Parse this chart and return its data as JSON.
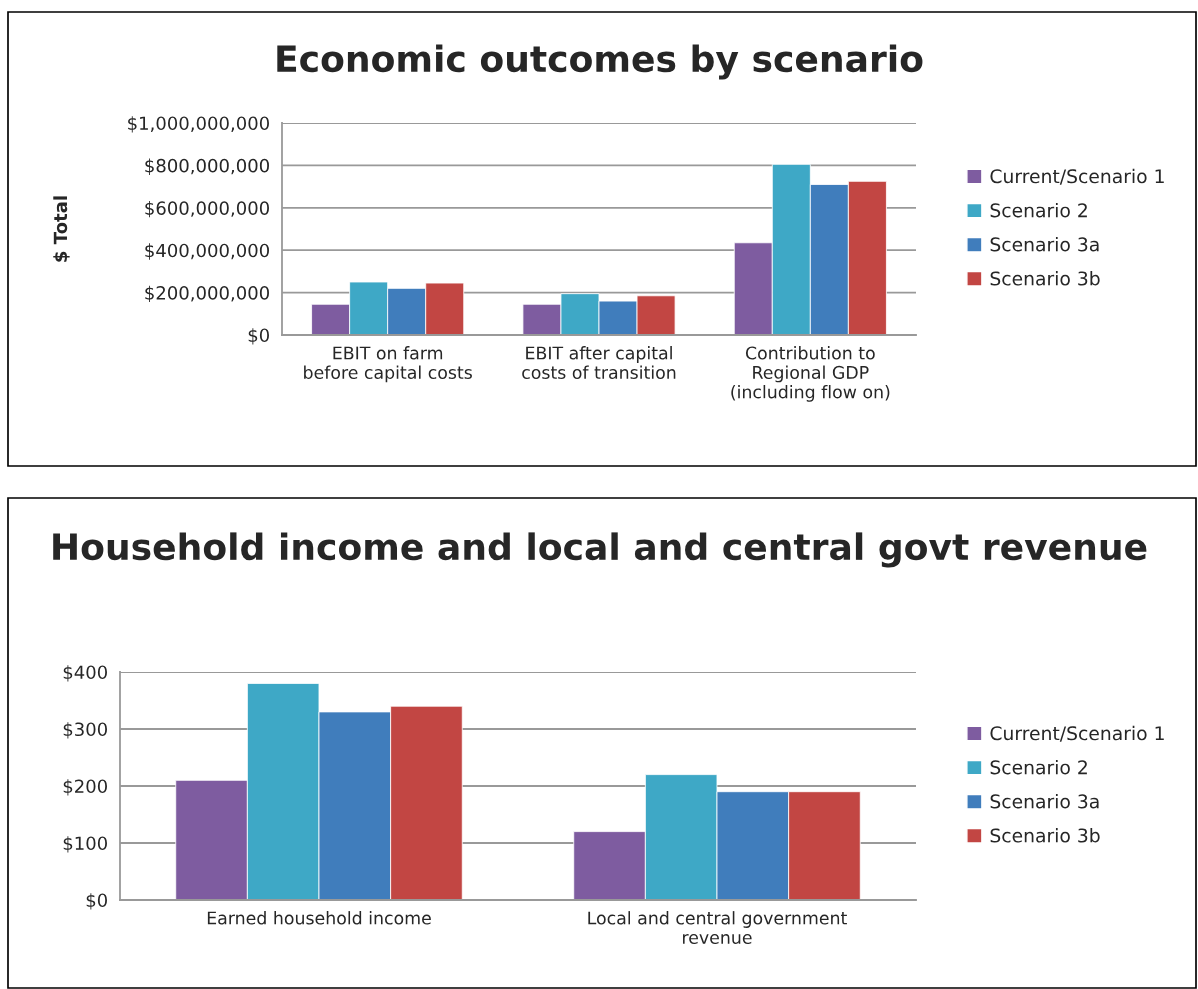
{
  "chart_data": [
    {
      "type": "bar",
      "title": "Economic outcomes by scenario",
      "ylabel": "$ Total",
      "categories": [
        "EBIT on farm\nbefore capital costs",
        "EBIT after capital\ncosts of transition",
        "Contribution to\nRegional GDP\n(including flow on)"
      ],
      "series": [
        {
          "name": "Current/Scenario 1",
          "color": "#7e5ca0",
          "values": [
            145000000,
            145000000,
            435000000
          ]
        },
        {
          "name": "Scenario 2",
          "color": "#3ea8c6",
          "values": [
            250000000,
            195000000,
            805000000
          ]
        },
        {
          "name": "Scenario 3a",
          "color": "#407dbc",
          "values": [
            220000000,
            160000000,
            710000000
          ]
        },
        {
          "name": "Scenario 3b",
          "color": "#c24643",
          "values": [
            245000000,
            185000000,
            725000000
          ]
        }
      ],
      "ylim": [
        0,
        1000000000
      ],
      "yticks": [
        {
          "value": 0,
          "label": "$0"
        },
        {
          "value": 200000000,
          "label": "$200,000,000"
        },
        {
          "value": 400000000,
          "label": "$400,000,000"
        },
        {
          "value": 600000000,
          "label": "$600,000,000"
        },
        {
          "value": 800000000,
          "label": "$800,000,000"
        },
        {
          "value": 1000000000,
          "label": "$1,000,000,000"
        }
      ],
      "grid": "y",
      "legend": "right"
    },
    {
      "type": "bar",
      "title": "Household income and local and central govt revenue",
      "categories": [
        "Earned household income",
        "Local and central government\nrevenue"
      ],
      "series": [
        {
          "name": "Current/Scenario 1",
          "color": "#7e5ca0",
          "values": [
            210,
            120
          ]
        },
        {
          "name": "Scenario 2",
          "color": "#3ea8c6",
          "values": [
            380,
            220
          ]
        },
        {
          "name": "Scenario 3a",
          "color": "#407dbc",
          "values": [
            330,
            190
          ]
        },
        {
          "name": "Scenario 3b",
          "color": "#c24643",
          "values": [
            340,
            190
          ]
        }
      ],
      "ylim": [
        0,
        400
      ],
      "yticks": [
        {
          "value": 0,
          "label": "$0"
        },
        {
          "value": 100,
          "label": "$100"
        },
        {
          "value": 200,
          "label": "$200"
        },
        {
          "value": 300,
          "label": "$300"
        },
        {
          "value": 400,
          "label": "$400"
        }
      ],
      "grid": "y",
      "legend": "right"
    }
  ]
}
